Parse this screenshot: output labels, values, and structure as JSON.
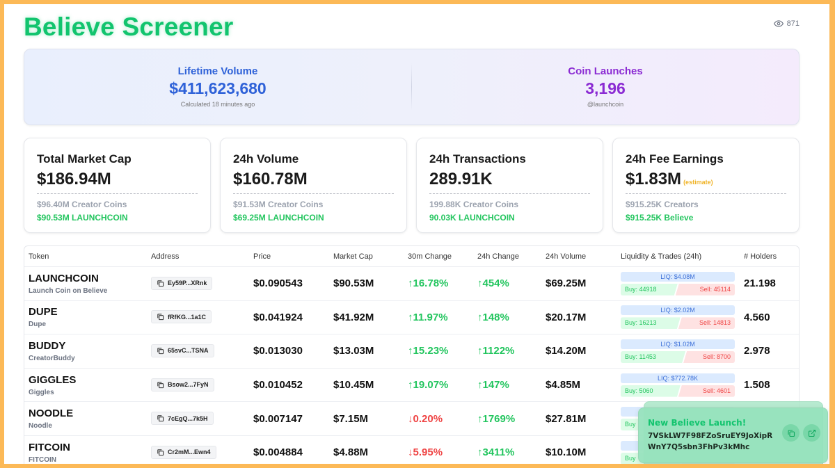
{
  "header": {
    "title": "Believe Screener",
    "view_count": "871",
    "view_icon": "eye-icon"
  },
  "hero": {
    "lifetime": {
      "label": "Lifetime Volume",
      "value": "$411,623,680",
      "sub": "Calculated 18 minutes ago"
    },
    "launches": {
      "label": "Coin Launches",
      "value": "3,196",
      "sub": "@launchcoin"
    }
  },
  "stats": [
    {
      "label": "Total Market Cap",
      "value": "$186.94M",
      "note": "",
      "sub1": "$96.40M Creator Coins",
      "sub2": "$90.53M LAUNCHCOIN"
    },
    {
      "label": "24h Volume",
      "value": "$160.78M",
      "note": "",
      "sub1": "$91.53M Creator Coins",
      "sub2": "$69.25M LAUNCHCOIN"
    },
    {
      "label": "24h Transactions",
      "value": "289.91K",
      "note": "",
      "sub1": "199.88K Creator Coins",
      "sub2": "90.03K LAUNCHCOIN"
    },
    {
      "label": "24h Fee Earnings",
      "value": "$1.83M",
      "note": "(estimate)",
      "sub1": "$915.25K Creators",
      "sub2": "$915.25K Believe"
    }
  ],
  "table": {
    "headers": [
      "Token",
      "Address",
      "Price",
      "Market Cap",
      "30m Change",
      "24h Change",
      "24h Volume",
      "Liquidity & Trades (24h)",
      "# Holders"
    ],
    "rows": [
      {
        "symbol": "LAUNCHCOIN",
        "name": "Launch Coin on Believe",
        "address": "Ey59P...XRnk",
        "price": "$0.090543",
        "mcap": "$90.53M",
        "ch30_arrow": "↑",
        "ch30": "16.78%",
        "ch30_dir": "up",
        "ch24_arrow": "↑",
        "ch24": "454%",
        "ch24_dir": "up",
        "volume": "$69.25M",
        "liq": "LIQ: $4.08M",
        "buy": "Buy: 44918",
        "sell": "Sell: 45114",
        "buy_count": 44918,
        "sell_count": 45114,
        "holders": "21.198"
      },
      {
        "symbol": "DUPE",
        "name": "Dupe",
        "address": "fRfKG...1a1C",
        "price": "$0.041924",
        "mcap": "$41.92M",
        "ch30_arrow": "↑",
        "ch30": "11.97%",
        "ch30_dir": "up",
        "ch24_arrow": "↑",
        "ch24": "148%",
        "ch24_dir": "up",
        "volume": "$20.17M",
        "liq": "LIQ: $2.02M",
        "buy": "Buy: 16213",
        "sell": "Sell: 14813",
        "buy_count": 16213,
        "sell_count": 14813,
        "holders": "4.560"
      },
      {
        "symbol": "BUDDY",
        "name": "CreatorBuddy",
        "address": "65svC...TSNA",
        "price": "$0.013030",
        "mcap": "$13.03M",
        "ch30_arrow": "↑",
        "ch30": "15.23%",
        "ch30_dir": "up",
        "ch24_arrow": "↑",
        "ch24": "1122%",
        "ch24_dir": "up",
        "volume": "$14.20M",
        "liq": "LIQ: $1.02M",
        "buy": "Buy: 11453",
        "sell": "Sell: 8700",
        "buy_count": 11453,
        "sell_count": 8700,
        "holders": "2.978"
      },
      {
        "symbol": "GIGGLES",
        "name": "Giggles",
        "address": "Bsow2...7FyN",
        "price": "$0.010452",
        "mcap": "$10.45M",
        "ch30_arrow": "↑",
        "ch30": "19.07%",
        "ch30_dir": "up",
        "ch24_arrow": "↑",
        "ch24": "147%",
        "ch24_dir": "up",
        "volume": "$4.85M",
        "liq": "LIQ: $772.78K",
        "buy": "Buy: 5060",
        "sell": "Sell: 4601",
        "buy_count": 5060,
        "sell_count": 4601,
        "holders": "1.508"
      },
      {
        "symbol": "NOODLE",
        "name": "Noodle",
        "address": "7cEgQ...7k5H",
        "price": "$0.007147",
        "mcap": "$7.15M",
        "ch30_arrow": "↓",
        "ch30": "0.20%",
        "ch30_dir": "down",
        "ch24_arrow": "↑",
        "ch24": "1769%",
        "ch24_dir": "up",
        "volume": "$27.81M",
        "buy_partial": "Buy",
        "holders_hidden": true
      },
      {
        "symbol": "FITCOIN",
        "name": "FITCOIN",
        "address": "Cr2mM...Ewn4",
        "price": "$0.004884",
        "mcap": "$4.88M",
        "ch30_arrow": "↓",
        "ch30": "5.95%",
        "ch30_dir": "down",
        "ch24_arrow": "↑",
        "ch24": "3411%",
        "ch24_dir": "up",
        "volume": "$10.10M",
        "buy_partial": "Buy",
        "holders_hidden": true
      }
    ]
  },
  "toast": {
    "title": "New Believe Launch!",
    "address": "7VSkLW7F98FZoSruEY9JoXipRWnY7Q5sbn3FhPv3kMhc",
    "copy_icon": "copy-icon",
    "open_icon": "external-link-icon"
  },
  "colors": {
    "brand_green": "#12c46e",
    "up": "#22c55e",
    "down": "#ef4444",
    "blue": "#2f62d8",
    "purple": "#8b2bd3",
    "border_frame": "#fcb957"
  }
}
